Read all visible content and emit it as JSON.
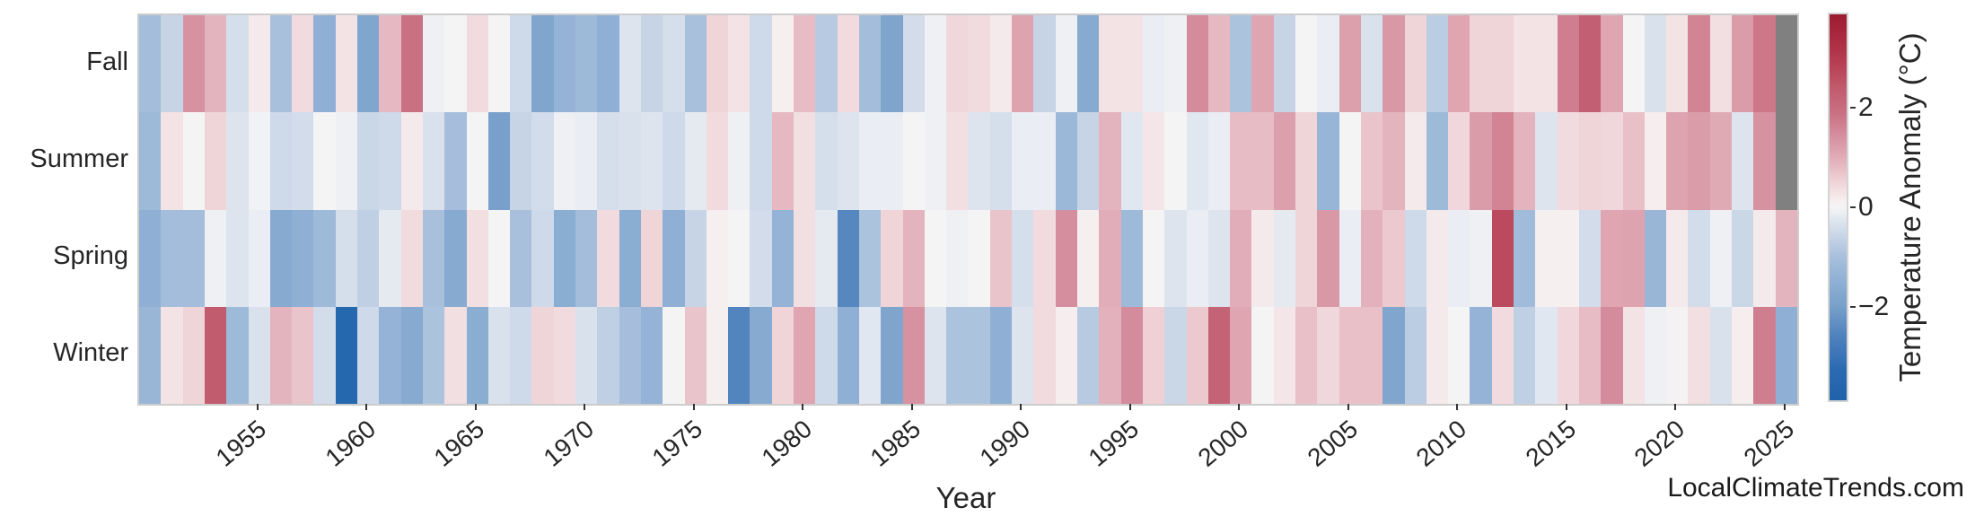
{
  "footer": {
    "watermark": "LocalClimateTrends.com"
  },
  "chart_data": {
    "type": "heatmap",
    "xlabel": "Year",
    "x_start": 1950,
    "x_end": 2025,
    "x_tick_labels": [
      "1955",
      "1960",
      "1965",
      "1970",
      "1975",
      "1980",
      "1985",
      "1990",
      "1995",
      "2000",
      "2005",
      "2010",
      "2015",
      "2020",
      "2025"
    ],
    "rows": [
      "Fall",
      "Summer",
      "Spring",
      "Winter"
    ],
    "series": [
      {
        "name": "Fall",
        "values": [
          -1.1,
          -0.6,
          1.4,
          0.9,
          -0.4,
          0.2,
          -1.0,
          0.4,
          -1.5,
          0.3,
          -1.8,
          0.85,
          1.9,
          -0.1,
          0.0,
          0.4,
          0.0,
          -0.5,
          -1.8,
          -1.4,
          -1.2,
          -1.5,
          -0.3,
          -0.6,
          -0.4,
          -1.0,
          0.5,
          0.3,
          -0.5,
          0.1,
          0.8,
          -0.8,
          0.4,
          -1.1,
          -1.85,
          -0.45,
          -0.1,
          0.45,
          0.4,
          0.2,
          1.15,
          -0.6,
          -0.1,
          -1.7,
          0.3,
          0.3,
          -0.15,
          -0.1,
          1.5,
          0.85,
          -0.95,
          1.1,
          -0.6,
          0.0,
          -0.15,
          1.2,
          -0.35,
          1.3,
          0.5,
          -0.75,
          1.1,
          0.5,
          0.5,
          0.3,
          0.3,
          1.7,
          2.3,
          1.1,
          0.0,
          -0.35,
          0.3,
          1.6,
          0.35,
          1.25,
          1.8,
          null
        ]
      },
      {
        "name": "Summer",
        "values": [
          -1.2,
          0.3,
          0.0,
          0.5,
          -0.3,
          -0.05,
          -0.5,
          -0.45,
          0.0,
          -0.1,
          -0.55,
          -0.5,
          0.2,
          -0.35,
          -1.05,
          0.0,
          -2.0,
          -0.6,
          -0.45,
          -0.1,
          -0.15,
          -0.4,
          -0.35,
          -0.3,
          -0.5,
          -0.2,
          0.4,
          -0.1,
          -0.5,
          0.85,
          0.35,
          -0.4,
          -0.3,
          -0.15,
          -0.15,
          0.0,
          -0.1,
          0.35,
          -0.3,
          -0.4,
          -0.15,
          -0.15,
          -1.25,
          -0.6,
          0.9,
          -0.25,
          0.25,
          0.0,
          -0.25,
          -0.15,
          0.8,
          0.8,
          1.2,
          0.5,
          -1.35,
          0.0,
          0.7,
          0.9,
          0.2,
          -1.2,
          0.45,
          1.25,
          1.6,
          0.9,
          -0.3,
          0.4,
          0.5,
          0.45,
          0.75,
          0.15,
          1.15,
          1.25,
          1.05,
          -0.3,
          1.4,
          null
        ]
      },
      {
        "name": "Spring",
        "values": [
          -1.5,
          -1.1,
          -1.1,
          -0.1,
          -0.3,
          -0.15,
          -1.7,
          -1.5,
          -1.2,
          -0.4,
          -0.7,
          -0.2,
          0.4,
          -1.0,
          -1.7,
          0.35,
          0.0,
          -1.0,
          -0.5,
          -1.6,
          -1.1,
          0.4,
          -1.6,
          0.5,
          -1.5,
          -0.6,
          0.1,
          0.0,
          -0.45,
          -1.4,
          0.35,
          -0.2,
          -2.5,
          -0.95,
          0.5,
          0.9,
          0.0,
          -0.1,
          0.0,
          0.7,
          -0.4,
          0.4,
          1.45,
          0.1,
          1.0,
          -1.2,
          0.0,
          -0.3,
          -0.15,
          -0.3,
          1.0,
          0.2,
          -0.2,
          0.5,
          1.3,
          -0.15,
          0.95,
          0.65,
          -0.5,
          0.2,
          -0.15,
          -0.1,
          2.7,
          -1.15,
          0.1,
          0.1,
          -0.45,
          1.1,
          1.15,
          -1.3,
          0.2,
          -0.45,
          -0.1,
          -0.55,
          0.2,
          0.9
        ]
      },
      {
        "name": "Winter",
        "values": [
          -1.3,
          0.3,
          0.5,
          2.4,
          -1.2,
          -0.35,
          0.9,
          0.7,
          -0.45,
          -3.5,
          -0.5,
          -1.4,
          -1.7,
          -0.95,
          0.35,
          -1.6,
          -0.35,
          -0.5,
          0.5,
          0.4,
          -0.35,
          -0.7,
          -1.05,
          -1.4,
          0.0,
          0.7,
          0.1,
          -2.55,
          -1.7,
          0.5,
          1.1,
          -0.5,
          -1.5,
          -0.25,
          -1.85,
          1.4,
          -0.3,
          -0.95,
          -0.95,
          -1.5,
          -0.3,
          0.4,
          0.15,
          -0.8,
          0.95,
          1.5,
          0.55,
          -0.55,
          0.65,
          2.2,
          1.1,
          0.0,
          0.25,
          0.75,
          0.45,
          0.75,
          0.75,
          -1.8,
          -0.75,
          0.2,
          0.0,
          -1.4,
          0.4,
          -0.7,
          -0.25,
          0.45,
          0.8,
          1.5,
          0.3,
          -0.1,
          0.05,
          0.35,
          -0.35,
          0.15,
          1.7,
          -1.5
        ]
      }
    ],
    "colorbar": {
      "label": "Temperature Anomaly (°C)",
      "ticks": [
        2,
        0,
        -2
      ],
      "vmin": -3.9,
      "vmax": 3.9
    },
    "missing_color": "#808080",
    "colormap_stops": [
      [
        -3.9,
        "#1f63aa"
      ],
      [
        -3.3,
        "#2a6ab0"
      ],
      [
        -3.0,
        "#3a74b6"
      ],
      [
        -2.6,
        "#4f82bd"
      ],
      [
        -2.0,
        "#78a0ca"
      ],
      [
        -1.5,
        "#8fb0d4"
      ],
      [
        -1.0,
        "#a8c0dc"
      ],
      [
        -0.6,
        "#c6d4e6"
      ],
      [
        -0.3,
        "#dde4ee"
      ],
      [
        -0.12,
        "#eceff4"
      ],
      [
        0,
        "#f5f4f5"
      ],
      [
        0.15,
        "#f6edee"
      ],
      [
        0.35,
        "#f2dfe2"
      ],
      [
        0.6,
        "#edccd2"
      ],
      [
        0.9,
        "#e4b4be"
      ],
      [
        1.2,
        "#dc9fac"
      ],
      [
        1.5,
        "#d48b9b"
      ],
      [
        1.9,
        "#ca7083"
      ],
      [
        2.4,
        "#c15b6e"
      ],
      [
        2.8,
        "#ba4459"
      ],
      [
        3.3,
        "#ad2f44"
      ],
      [
        3.9,
        "#9c1b31"
      ]
    ],
    "grid": false,
    "legend_position": "right-colorbar"
  }
}
